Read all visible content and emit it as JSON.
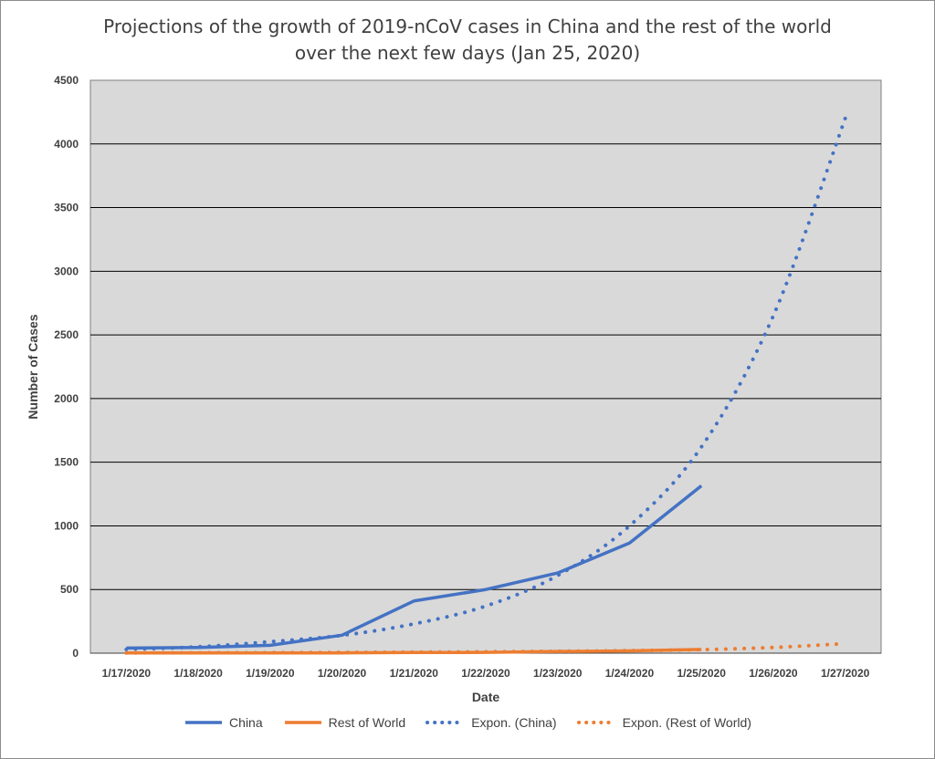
{
  "chart_data": {
    "type": "line",
    "title_line1": "Projections of the growth of 2019-nCoV cases in China and the rest of the world",
    "title_line2": "over the next few days (Jan 25, 2020)",
    "xlabel": "Date",
    "ylabel": "Number of Cases",
    "categories": [
      "1/17/2020",
      "1/18/2020",
      "1/19/2020",
      "1/20/2020",
      "1/21/2020",
      "1/22/2020",
      "1/23/2020",
      "1/24/2020",
      "1/25/2020",
      "1/26/2020",
      "1/27/2020"
    ],
    "ylim": [
      0,
      4500
    ],
    "yticks": [
      0,
      500,
      1000,
      1500,
      2000,
      2500,
      3000,
      3500,
      4000,
      4500
    ],
    "grid": true,
    "legend_position": "bottom",
    "series": [
      {
        "name": "China",
        "style": "solid",
        "color": "#4472C4",
        "values": [
          40,
          45,
          62,
          141,
          410,
          500,
          630,
          865,
          1315,
          null,
          null
        ]
      },
      {
        "name": "Rest of World",
        "style": "solid",
        "color": "#ED7D31",
        "values": [
          2,
          2,
          2,
          2,
          5,
          6,
          13,
          18,
          29,
          null,
          null
        ]
      },
      {
        "name": "Expon. (China)",
        "style": "dotted",
        "color": "#4472C4",
        "values": [
          30,
          50,
          90,
          140,
          230,
          370,
          610,
          1000,
          1620,
          2650,
          4200
        ]
      },
      {
        "name": "Expon. (Rest of World)",
        "style": "dotted",
        "color": "#ED7D31",
        "values": [
          2,
          3,
          4,
          6,
          8,
          11,
          15,
          20,
          28,
          45,
          75
        ]
      }
    ]
  }
}
